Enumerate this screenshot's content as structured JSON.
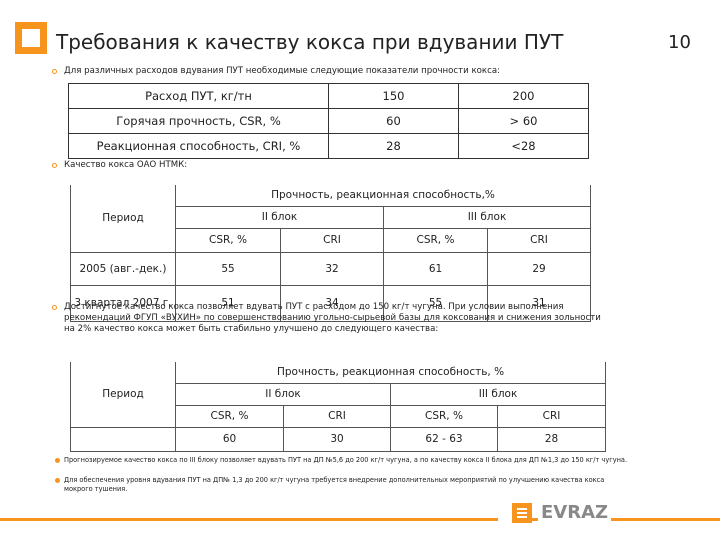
{
  "header": {
    "title": "Требования к качеству кокса при вдувании ПУТ",
    "page_number": "10"
  },
  "bullets": [
    "Для различных расходов вдувания ПУТ необходимые следующие показатели прочности кокса:",
    "Качество кокса ОАО НТМК:",
    "Достигнутое качество кокса позволяет вдувать ПУТ с расходом до 150 кг/т чугуна. При условии выполнения рекомендаций ФГУП «ВУХИН» по совершенствованию угольно-сырьевой базы для коксования и снижения зольности на 2% качество кокса может быть стабильно улучшено до следующего качества:"
  ],
  "table1": {
    "rows": [
      [
        "Расход ПУТ, кг/тн",
        "150",
        "200"
      ],
      [
        "Горячая прочность, CSR, %",
        "60",
        "> 60"
      ],
      [
        "Реакционная способность, CRI, %",
        "28",
        "<28"
      ]
    ]
  },
  "table2": {
    "period": "Период",
    "group": "Прочность, реакционная способность,%",
    "blocks": [
      "II блок",
      "III блок"
    ],
    "metrics": [
      "CSR, %",
      "CRI",
      "CSR, %",
      "CRI"
    ],
    "rows": [
      [
        "2005 (авг.-дек.)",
        "55",
        "32",
        "61",
        "29"
      ],
      [
        "3 квартал 2007 г.",
        "51",
        "34",
        "55",
        "31"
      ]
    ]
  },
  "table3": {
    "period": "Период",
    "group": "Прочность, реакционная способность, %",
    "blocks": [
      "II блок",
      "III блок"
    ],
    "metrics": [
      "CSR, %",
      "CRI",
      "CSR, %",
      "CRI"
    ],
    "rows": [
      [
        "60",
        "30",
        "62 - 63",
        "28"
      ]
    ]
  },
  "footnotes": [
    "Прогнозируемое качество кокса по III блоку позволяет вдувать ПУТ на ДП №5,6 до 200 кг/т чугуна, а по качеству кокса II блока для ДП №1,3 до 150 кг/т чугуна.",
    "Для обеспечения уровня вдувания ПУТ на ДП№ 1,3 до 200 кг/т чугуна требуется внедрение дополнительных мероприятий по улучшению качества кокса мокрого тушения."
  ],
  "logo": "EVRAZ"
}
